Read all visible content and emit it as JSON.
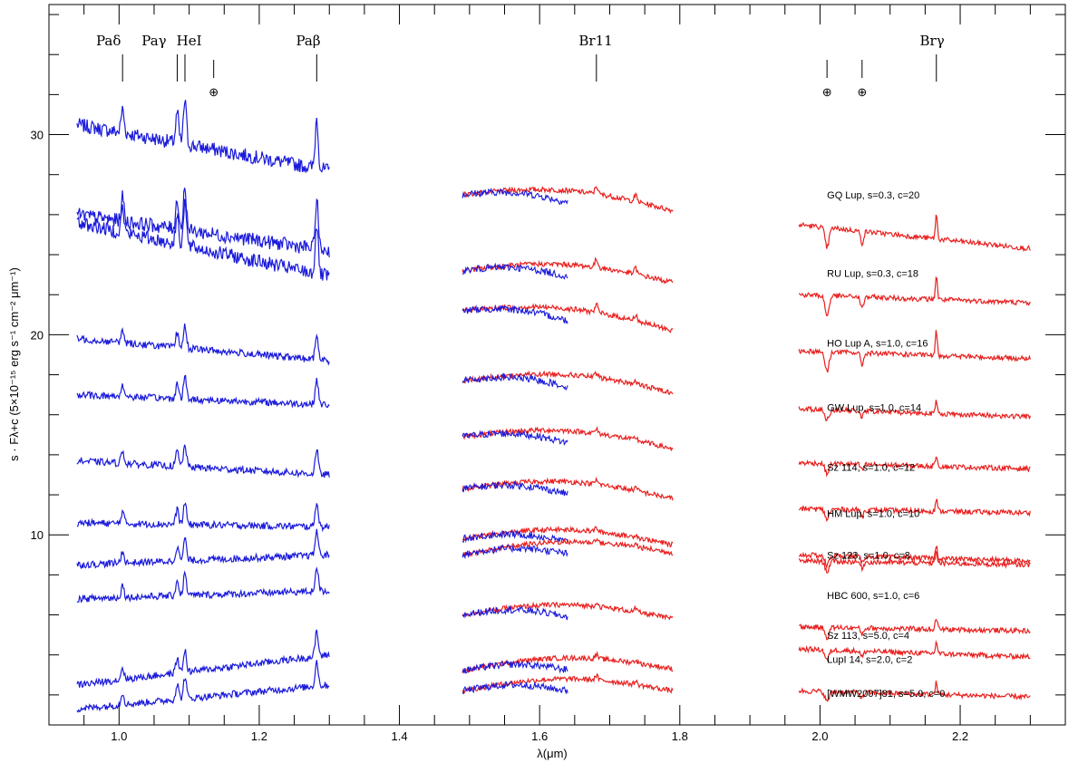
{
  "chart_data": {
    "type": "line",
    "xlabel": "λ(μm)",
    "ylabel": "s · Fλ+c (5×10⁻¹⁵ erg s⁻¹ cm⁻² μm⁻¹)",
    "xlim": [
      0.9,
      2.35
    ],
    "ylim": [
      0.5,
      36.5
    ],
    "x_ticks": [
      1.0,
      1.2,
      1.4,
      1.6,
      1.8,
      2.0,
      2.2
    ],
    "x_tick_labels": [
      "1.0",
      "1.2",
      "1.4",
      "1.6",
      "1.8",
      "2.0",
      "2.2"
    ],
    "y_ticks": [
      10,
      20,
      30
    ],
    "y_tick_labels": [
      "10",
      "20",
      "30"
    ],
    "grid": false,
    "series_colors": {
      "observed": "#1a1adb",
      "template": "#e8201f"
    },
    "spectral_lines": [
      {
        "label": "Paδ",
        "x": 1.005
      },
      {
        "label": "Paγ",
        "x": 1.094
      },
      {
        "label": "HeI",
        "x": 1.083
      },
      {
        "label": "Paβ",
        "x": 1.282
      },
      {
        "label": "Br11",
        "x": 1.681
      },
      {
        "label": "Brγ",
        "x": 2.166
      }
    ],
    "telluric_marks": [
      {
        "label": "⊕",
        "x": 1.135
      },
      {
        "label": "⊕",
        "x": 2.01
      },
      {
        "label": "⊕",
        "x": 2.06
      }
    ],
    "objects": [
      {
        "label": "GQ Lup, s=0.3, c=20",
        "label_y": 26.8,
        "j_start": 30.5,
        "j_end": 28.2,
        "h_start": 27.0,
        "h_end": 26.2,
        "k_start": 25.5,
        "k_end": 24.3
      },
      {
        "label": "RU Lup, s=0.3, c=18",
        "label_y": 22.9,
        "j_start": 26.0,
        "j_end": 24.2,
        "h_start": 23.2,
        "h_end": 22.6,
        "k_start": 22.0,
        "k_end": 21.6
      },
      {
        "label": "HO Lup A, s=1.0, c=16",
        "label_y": 19.4,
        "j_start": 25.6,
        "j_end": 22.9,
        "h_start": 21.2,
        "h_end": 20.2,
        "k_start": 19.2,
        "k_end": 18.8
      },
      {
        "label": "GW Lup, s=1.0, c=14",
        "label_y": 16.2,
        "j_start": 19.8,
        "j_end": 18.7,
        "h_start": 17.7,
        "h_end": 17.1,
        "k_start": 16.3,
        "k_end": 15.9
      },
      {
        "label": "Sz 114, s=1.0, c=12",
        "label_y": 13.2,
        "j_start": 17.0,
        "j_end": 16.5,
        "h_start": 14.9,
        "h_end": 14.3,
        "k_start": 13.6,
        "k_end": 13.3
      },
      {
        "label": "HM Lup, s=1.0, c=10",
        "label_y": 10.9,
        "j_start": 13.7,
        "j_end": 13.0,
        "h_start": 12.3,
        "h_end": 11.8,
        "k_start": 11.3,
        "k_end": 11.1
      },
      {
        "label": "Sz 123, s=1.0, c=8",
        "label_y": 8.8,
        "j_start": 10.6,
        "j_end": 10.4,
        "h_start": 9.8,
        "h_end": 9.5,
        "k_start": 9.0,
        "k_end": 8.7
      },
      {
        "label": "HBC 600, s=1.0, c=6",
        "label_y": 6.8,
        "j_start": 8.5,
        "j_end": 9.0,
        "h_start": 9.0,
        "h_end": 9.1,
        "k_start": 8.7,
        "k_end": 8.5
      },
      {
        "label": "Sz 113, s=5.0, c=4",
        "label_y": 4.8,
        "j_start": 6.8,
        "j_end": 7.2,
        "h_start": 6.0,
        "h_end": 5.8,
        "k_start": 5.4,
        "k_end": 5.2
      },
      {
        "label": "LupI 14, s=2.0, c=2",
        "label_y": 3.6,
        "j_start": 2.5,
        "j_end": 4.0,
        "h_start": 3.2,
        "h_end": 3.3,
        "k_start": 4.3,
        "k_end": 3.9
      },
      {
        "label": "[WMW2007]81, s=5.0, c=0",
        "label_y": 1.9,
        "j_start": 1.3,
        "j_end": 2.5,
        "h_start": 2.2,
        "h_end": 2.2,
        "k_start": 2.2,
        "k_end": 1.9
      }
    ]
  }
}
